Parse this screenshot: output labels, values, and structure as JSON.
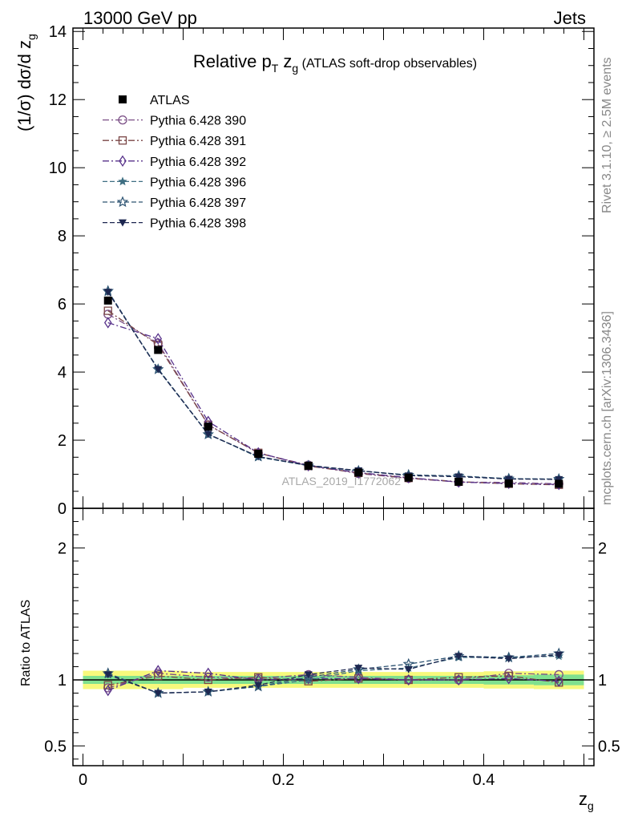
{
  "header": {
    "left": "13000 GeV pp",
    "right": "Jets"
  },
  "side": {
    "rivet": "Rivet 3.1.10, ≥ 2.5M events",
    "mcplots": "mcplots.cern.ch [arXiv:1306.3436]"
  },
  "watermark": "ATLAS_2019_I1772062",
  "chart_data": [
    {
      "type": "line",
      "title_main": "Relative p",
      "title_sub_T": "T",
      "title_mid": " z",
      "title_sub_g": "g",
      "title_rest": " (ATLAS soft-drop observables)",
      "ylabel": "(1/σ) dσ/d z",
      "ylabel_sub": "g",
      "xlim": [
        -0.01,
        0.51
      ],
      "ylim": [
        0,
        14.1
      ],
      "yticks": [
        "0",
        "2",
        "4",
        "6",
        "8",
        "10",
        "12",
        "14"
      ],
      "x": [
        0.025,
        0.075,
        0.125,
        0.175,
        0.225,
        0.275,
        0.325,
        0.375,
        0.425,
        0.475
      ],
      "series": [
        {
          "name": "ATLAS",
          "marker": "filled-square",
          "color": "#000000",
          "values": [
            6.1,
            4.65,
            2.4,
            1.6,
            1.25,
            1.05,
            0.9,
            0.78,
            0.73,
            0.72
          ]
        },
        {
          "name": "Pythia 6.428 390",
          "marker": "open-circle",
          "color": "#7b4f86",
          "dash": "8,3,2,3",
          "values": [
            5.7,
            4.85,
            2.45,
            1.62,
            1.27,
            1.02,
            0.88,
            0.77,
            0.76,
            0.72
          ]
        },
        {
          "name": "Pythia 6.428 391",
          "marker": "open-square",
          "color": "#7a4646",
          "dash": "8,3,2,3",
          "values": [
            5.8,
            4.8,
            2.45,
            1.63,
            1.24,
            1.04,
            0.89,
            0.78,
            0.72,
            0.69
          ]
        },
        {
          "name": "Pythia 6.428 392",
          "marker": "open-diamond",
          "color": "#57318a",
          "dash": "8,3,2,3",
          "values": [
            5.45,
            4.98,
            2.55,
            1.63,
            1.25,
            1.05,
            0.9,
            0.77,
            0.73,
            0.7
          ]
        },
        {
          "name": "Pythia 6.428 396",
          "marker": "star",
          "color": "#3f6f83",
          "dash": "6,3",
          "values": [
            6.35,
            4.1,
            2.18,
            1.5,
            1.26,
            1.1,
            0.97,
            0.93,
            0.87,
            0.85
          ]
        },
        {
          "name": "Pythia 6.428 397",
          "marker": "open-star",
          "color": "#2d5372",
          "dash": "6,3",
          "values": [
            6.38,
            4.08,
            2.17,
            1.52,
            1.25,
            1.1,
            0.98,
            0.95,
            0.87,
            0.86
          ]
        },
        {
          "name": "Pythia 6.428 398",
          "marker": "filled-triangle-down",
          "color": "#1d2750",
          "dash": "6,3",
          "values": [
            6.35,
            4.08,
            2.18,
            1.52,
            1.26,
            1.11,
            0.96,
            0.93,
            0.86,
            0.85
          ]
        }
      ]
    },
    {
      "type": "line",
      "xlabel": "z",
      "xlabel_sub": "g",
      "ylabel": "Ratio to ATLAS",
      "xlim": [
        -0.01,
        0.51
      ],
      "ylim": [
        0.35,
        2.3
      ],
      "yticks": [
        {
          "v": 0.5,
          "label": "0.5"
        },
        {
          "v": 1,
          "label": "1"
        },
        {
          "v": 2,
          "label": "2"
        }
      ],
      "xticks": [
        {
          "v": 0,
          "label": "0"
        },
        {
          "v": 0.2,
          "label": "0.2"
        },
        {
          "v": 0.4,
          "label": "0.4"
        }
      ],
      "band_inner": [
        0.03,
        0.03,
        0.03,
        0.03,
        0.03,
        0.03,
        0.03,
        0.03,
        0.035,
        0.04
      ],
      "band_outer": [
        0.07,
        0.07,
        0.06,
        0.06,
        0.06,
        0.06,
        0.06,
        0.06,
        0.065,
        0.07
      ],
      "band_inner_color": "#7fe08f",
      "band_outer_color": "#f7f97c",
      "x": [
        0.025,
        0.075,
        0.125,
        0.175,
        0.225,
        0.275,
        0.325,
        0.375,
        0.425,
        0.475
      ],
      "series": [
        {
          "name": "Pythia 6.428 390",
          "values": [
            0.94,
            1.05,
            1.02,
            1.01,
            1.04,
            1.02,
            1.0,
            1.0,
            1.05,
            1.04
          ]
        },
        {
          "name": "Pythia 6.428 391",
          "values": [
            0.96,
            1.03,
            1.0,
            1.02,
            0.99,
            1.01,
            1.0,
            1.02,
            1.03,
            0.98
          ]
        },
        {
          "name": "Pythia 6.428 392",
          "values": [
            0.92,
            1.07,
            1.05,
            1.0,
            1.01,
            1.01,
            1.0,
            1.0,
            1.01,
            0.99
          ]
        },
        {
          "name": "Pythia 6.428 396",
          "values": [
            1.04,
            0.9,
            0.91,
            0.95,
            1.0,
            1.07,
            1.09,
            1.17,
            1.17,
            1.18
          ]
        },
        {
          "name": "Pythia 6.428 397",
          "values": [
            1.05,
            0.9,
            0.91,
            0.95,
            1.02,
            1.08,
            1.12,
            1.18,
            1.17,
            1.2
          ]
        },
        {
          "name": "Pythia 6.428 398",
          "values": [
            1.04,
            0.9,
            0.91,
            0.96,
            1.04,
            1.09,
            1.08,
            1.18,
            1.16,
            1.19
          ]
        }
      ]
    }
  ]
}
